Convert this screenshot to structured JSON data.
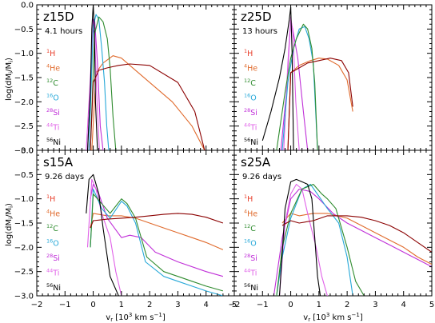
{
  "chart_data": {
    "type": "line",
    "ylabel": "log(dM_i/M_i)",
    "xlabel": "v_r [10^3 km s^-1]",
    "xlim": [
      -2,
      5
    ],
    "ylim": [
      -3.0,
      0.0
    ],
    "x_ticks": [
      "−2",
      "−1",
      "0",
      "1",
      "2",
      "3",
      "4",
      "5"
    ],
    "y_ticks": [
      "0.0",
      "−0.5",
      "−1.0",
      "−1.5",
      "−2.0",
      "−2.5",
      "−3.0"
    ],
    "species": [
      {
        "mass": "1",
        "el": "H",
        "color": "#e83e2a"
      },
      {
        "mass": "4",
        "el": "He",
        "color": "#e06a2c"
      },
      {
        "mass": "12",
        "el": "C",
        "color": "#2e8b2e"
      },
      {
        "mass": "16",
        "el": "O",
        "color": "#26a8d8"
      },
      {
        "mass": "28",
        "el": "Si",
        "color": "#c02fd8"
      },
      {
        "mass": "44",
        "el": "Ti",
        "color": "#e060e8"
      },
      {
        "mass": "56",
        "el": "Ni",
        "color": "#000000"
      }
    ],
    "h_line_color": "#8b0000",
    "panels": [
      {
        "title": "z15D",
        "subtitle": "4.1 hours",
        "series": [
          {
            "name": "H",
            "x": [
              -0.1,
              0.0,
              0.2,
              0.5,
              0.9,
              1.3,
              2.0,
              3.0,
              3.6,
              3.95
            ],
            "y": [
              -3.0,
              -1.6,
              -1.35,
              -1.3,
              -1.25,
              -1.22,
              -1.25,
              -1.6,
              -2.2,
              -3.0
            ]
          },
          {
            "name": "He",
            "x": [
              -0.05,
              0.1,
              0.35,
              0.7,
              1.0,
              1.4,
              2.0,
              2.8,
              3.5,
              3.95
            ],
            "y": [
              -3.0,
              -1.4,
              -1.2,
              -1.05,
              -1.1,
              -1.3,
              -1.6,
              -2.0,
              -2.5,
              -3.0
            ]
          },
          {
            "name": "C",
            "x": [
              -0.1,
              0.05,
              0.2,
              0.35,
              0.5,
              0.6,
              0.7,
              0.8
            ],
            "y": [
              -3.0,
              -0.6,
              -0.25,
              -0.35,
              -0.7,
              -1.3,
              -2.3,
              -3.0
            ]
          },
          {
            "name": "O",
            "x": [
              -0.15,
              0.0,
              0.1,
              0.2,
              0.3,
              0.4,
              0.48,
              0.55
            ],
            "y": [
              -3.0,
              -0.45,
              -0.2,
              -0.3,
              -0.9,
              -1.6,
              -2.5,
              -3.0
            ]
          },
          {
            "name": "Si",
            "x": [
              -0.2,
              -0.05,
              0.0,
              0.05,
              0.15,
              0.25,
              0.35
            ],
            "y": [
              -3.0,
              -1.0,
              -0.3,
              -0.3,
              -1.2,
              -2.5,
              -3.0
            ]
          },
          {
            "name": "Ti",
            "x": [
              -0.25,
              -0.1,
              -0.02,
              0.05,
              0.12,
              0.22
            ],
            "y": [
              -3.0,
              -1.5,
              -0.6,
              -0.5,
              -1.8,
              -3.0
            ]
          },
          {
            "name": "Ni",
            "x": [
              -0.2,
              -0.1,
              -0.05,
              0.0,
              0.04,
              0.08,
              0.15
            ],
            "y": [
              -3.0,
              -1.8,
              -0.5,
              0.0,
              -0.5,
              -2.0,
              -3.0
            ]
          }
        ]
      },
      {
        "title": "z25D",
        "subtitle": "13 hours",
        "series": [
          {
            "name": "H",
            "x": [
              -0.1,
              0.0,
              0.3,
              0.6,
              1.0,
              1.4,
              1.8,
              2.05,
              2.2
            ],
            "y": [
              -3.0,
              -1.4,
              -1.3,
              -1.2,
              -1.15,
              -1.1,
              -1.15,
              -1.4,
              -2.1
            ]
          },
          {
            "name": "He",
            "x": [
              -0.1,
              0.0,
              0.3,
              0.7,
              1.0,
              1.3,
              1.7,
              2.0,
              2.2
            ],
            "y": [
              -3.0,
              -1.4,
              -1.25,
              -1.15,
              -1.1,
              -1.12,
              -1.25,
              -1.55,
              -2.2
            ]
          },
          {
            "name": "C",
            "x": [
              -0.5,
              -0.2,
              0.0,
              0.2,
              0.45,
              0.6,
              0.75,
              0.85,
              0.95
            ],
            "y": [
              -3.0,
              -1.8,
              -1.1,
              -0.7,
              -0.4,
              -0.5,
              -0.9,
              -1.6,
              -3.0
            ]
          },
          {
            "name": "O",
            "x": [
              -0.3,
              -0.1,
              0.1,
              0.3,
              0.5,
              0.65,
              0.8,
              0.95
            ],
            "y": [
              -3.0,
              -1.6,
              -0.9,
              -0.5,
              -0.45,
              -0.7,
              -1.2,
              -3.0
            ]
          },
          {
            "name": "Si",
            "x": [
              -0.35,
              -0.15,
              0.0,
              0.1,
              0.25,
              0.45,
              0.6
            ],
            "y": [
              -3.0,
              -1.8,
              -0.3,
              -0.6,
              -1.1,
              -2.2,
              -3.0
            ]
          },
          {
            "name": "Ti",
            "x": [
              -0.25,
              -0.1,
              0.0,
              0.08,
              0.18,
              0.3
            ],
            "y": [
              -3.0,
              -1.2,
              -0.25,
              -0.6,
              -2.0,
              -3.0
            ]
          },
          {
            "name": "Ni",
            "x": [
              -1.0,
              -0.7,
              -0.4,
              -0.2,
              -0.05,
              0.0,
              0.05,
              0.1
            ],
            "y": [
              -2.8,
              -2.2,
              -1.5,
              -0.9,
              -0.3,
              -0.05,
              -1.0,
              -3.0
            ]
          }
        ]
      },
      {
        "title": "s15A",
        "subtitle": "9.26 days",
        "series": [
          {
            "name": "H",
            "x": [
              -0.1,
              0.0,
              0.5,
              1.0,
              1.5,
              2.0,
              2.5,
              3.0,
              3.5,
              4.0,
              4.6
            ],
            "y": [
              -1.6,
              -1.45,
              -1.42,
              -1.4,
              -1.38,
              -1.35,
              -1.32,
              -1.3,
              -1.32,
              -1.38,
              -1.5
            ]
          },
          {
            "name": "He",
            "x": [
              -0.1,
              0.0,
              0.5,
              1.0,
              1.5,
              2.0,
              2.5,
              3.0,
              3.5,
              4.0,
              4.6
            ],
            "y": [
              -1.6,
              -1.3,
              -1.35,
              -1.35,
              -1.4,
              -1.5,
              -1.6,
              -1.7,
              -1.8,
              -1.9,
              -2.05
            ]
          },
          {
            "name": "C",
            "x": [
              -0.1,
              0.0,
              0.3,
              0.6,
              1.0,
              1.2,
              1.5,
              1.9,
              2.5,
              3.0,
              3.5,
              4.0,
              4.6
            ],
            "y": [
              -2.0,
              -0.9,
              -1.1,
              -1.3,
              -1.0,
              -1.1,
              -1.4,
              -2.2,
              -2.5,
              -2.6,
              -2.7,
              -2.8,
              -2.9
            ]
          },
          {
            "name": "O",
            "x": [
              -0.1,
              0.0,
              0.3,
              0.6,
              1.0,
              1.2,
              1.5,
              1.85,
              2.5,
              3.0,
              3.5,
              4.0,
              4.6
            ],
            "y": [
              -2.0,
              -0.8,
              -1.2,
              -1.4,
              -1.05,
              -1.15,
              -1.5,
              -2.3,
              -2.6,
              -2.7,
              -2.8,
              -2.9,
              -3.0
            ]
          },
          {
            "name": "Si",
            "x": [
              -0.1,
              0.0,
              0.2,
              0.5,
              1.0,
              1.3,
              1.7,
              2.2,
              3.0,
              4.0,
              4.6
            ],
            "y": [
              -1.0,
              -0.7,
              -0.9,
              -1.4,
              -1.8,
              -1.75,
              -1.8,
              -2.1,
              -2.3,
              -2.5,
              -2.6
            ]
          },
          {
            "name": "Ti",
            "x": [
              -0.2,
              -0.05,
              0.1,
              0.3,
              0.6,
              0.8,
              1.0
            ],
            "y": [
              -2.0,
              -0.6,
              -0.8,
              -1.3,
              -1.8,
              -2.5,
              -3.0
            ]
          },
          {
            "name": "Ni",
            "x": [
              -0.25,
              -0.15,
              0.0,
              0.2,
              0.35,
              0.6,
              0.9
            ],
            "y": [
              -1.3,
              -0.6,
              -0.5,
              -0.9,
              -1.6,
              -2.6,
              -3.0
            ]
          }
        ]
      },
      {
        "title": "s25A",
        "subtitle": "9.26 days",
        "series": [
          {
            "name": "H",
            "x": [
              -0.3,
              0.0,
              0.3,
              0.8,
              1.3,
              2.0,
              2.5,
              3.0,
              3.5,
              4.0,
              4.5,
              5.0
            ],
            "y": [
              -1.55,
              -1.45,
              -1.5,
              -1.45,
              -1.35,
              -1.35,
              -1.38,
              -1.45,
              -1.55,
              -1.7,
              -1.9,
              -2.1
            ]
          },
          {
            "name": "He",
            "x": [
              -0.3,
              0.0,
              0.3,
              0.8,
              1.3,
              2.0,
              2.5,
              3.0,
              3.5,
              4.0,
              4.5,
              5.0
            ],
            "y": [
              -1.5,
              -1.3,
              -1.35,
              -1.3,
              -1.3,
              -1.4,
              -1.55,
              -1.7,
              -1.85,
              -2.0,
              -2.2,
              -2.35
            ]
          },
          {
            "name": "C",
            "x": [
              -0.5,
              -0.3,
              0.0,
              0.4,
              0.8,
              1.1,
              1.3,
              1.6,
              2.0,
              2.3,
              2.6
            ],
            "y": [
              -3.0,
              -2.0,
              -1.3,
              -0.8,
              -0.7,
              -0.9,
              -1.0,
              -1.2,
              -2.0,
              -2.7,
              -3.0
            ]
          },
          {
            "name": "O",
            "x": [
              -0.5,
              -0.3,
              0.0,
              0.4,
              0.7,
              1.0,
              1.3,
              1.7,
              2.0,
              2.2
            ],
            "y": [
              -3.0,
              -2.2,
              -1.4,
              -0.8,
              -0.7,
              -0.95,
              -1.2,
              -1.5,
              -2.2,
              -3.0
            ]
          },
          {
            "name": "Si",
            "x": [
              -0.6,
              -0.3,
              0.0,
              0.3,
              0.7,
              1.0,
              1.5,
              2.0,
              2.5,
              3.0,
              3.5,
              4.0,
              4.5,
              5.0
            ],
            "y": [
              -3.0,
              -1.8,
              -1.0,
              -0.8,
              -0.85,
              -1.0,
              -1.3,
              -1.5,
              -1.65,
              -1.8,
              -1.95,
              -2.1,
              -2.25,
              -2.4
            ]
          },
          {
            "name": "Ti",
            "x": [
              -0.4,
              -0.2,
              0.0,
              0.2,
              0.4,
              0.6,
              0.9,
              1.1,
              1.3
            ],
            "y": [
              -3.0,
              -1.5,
              -0.9,
              -0.7,
              -0.8,
              -1.3,
              -2.0,
              -2.6,
              -3.0
            ]
          },
          {
            "name": "Ni",
            "x": [
              -0.4,
              -0.2,
              0.0,
              0.2,
              0.4,
              0.6,
              0.75,
              0.85,
              0.95,
              1.05
            ],
            "y": [
              -3.0,
              -1.2,
              -0.65,
              -0.6,
              -0.65,
              -0.7,
              -1.0,
              -1.8,
              -2.6,
              -3.0
            ]
          }
        ]
      }
    ]
  }
}
